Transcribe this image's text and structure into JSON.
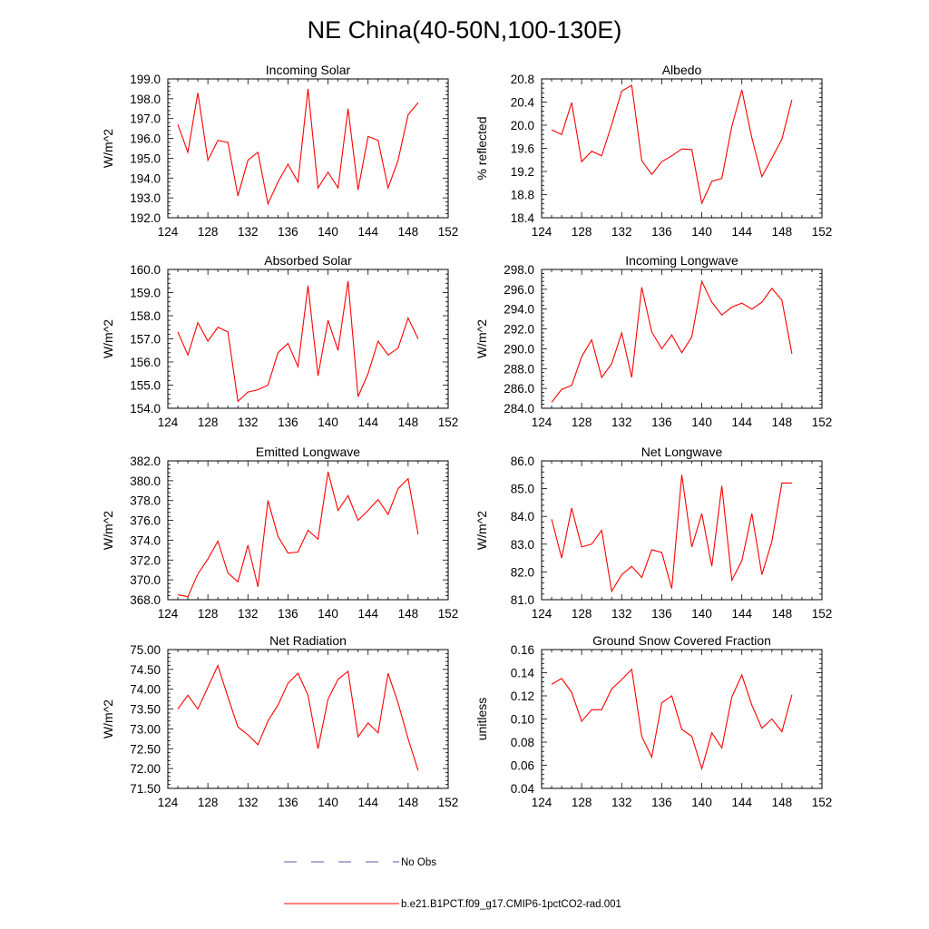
{
  "figure": {
    "title": "NE China(40-50N,100-130E)"
  },
  "colors": {
    "model_line": "#ff0000",
    "obs_line": "#5a5aa8",
    "axis": "#000000",
    "background": "#ffffff"
  },
  "legend": {
    "obs_label": "No Obs",
    "model_label": "b.e21.B1PCT.f09_g17.CMIP6-1pctCO2-rad.001"
  },
  "chart_data": [
    {
      "type": "line",
      "title": "Incoming Solar",
      "xlabel": "",
      "ylabel": "W/m^2",
      "xlim": [
        124,
        152
      ],
      "ylim": [
        192.0,
        199.0
      ],
      "x_ticks": [
        124,
        128,
        132,
        136,
        140,
        144,
        148,
        152
      ],
      "y_ticks": [
        "192.0",
        "193.0",
        "194.0",
        "195.0",
        "196.0",
        "197.0",
        "198.0",
        "199.0"
      ],
      "x": [
        125,
        126,
        127,
        128,
        129,
        130,
        131,
        132,
        133,
        134,
        135,
        136,
        137,
        138,
        139,
        140,
        141,
        142,
        143,
        144,
        145,
        146,
        147,
        148,
        149
      ],
      "values": [
        196.7,
        195.3,
        198.3,
        194.9,
        195.9,
        195.8,
        193.1,
        194.9,
        195.3,
        192.7,
        193.8,
        194.7,
        193.8,
        198.5,
        193.5,
        194.3,
        193.5,
        197.5,
        193.4,
        196.1,
        195.9,
        193.5,
        194.9,
        197.2,
        197.8
      ]
    },
    {
      "type": "line",
      "title": "Albedo",
      "xlabel": "",
      "ylabel": "% reflected",
      "xlim": [
        124,
        152
      ],
      "ylim": [
        18.4,
        20.8
      ],
      "x_ticks": [
        124,
        128,
        132,
        136,
        140,
        144,
        148,
        152
      ],
      "y_ticks": [
        "18.4",
        "18.8",
        "19.2",
        "19.6",
        "20.0",
        "20.4",
        "20.8"
      ],
      "x": [
        125,
        126,
        127,
        128,
        129,
        130,
        131,
        132,
        133,
        134,
        135,
        136,
        137,
        138,
        139,
        140,
        141,
        142,
        143,
        144,
        145,
        146,
        147,
        148,
        149
      ],
      "values": [
        19.92,
        19.84,
        20.39,
        19.37,
        19.55,
        19.47,
        20.01,
        20.59,
        20.69,
        19.39,
        19.15,
        19.37,
        19.47,
        19.59,
        19.58,
        18.65,
        19.03,
        19.08,
        19.98,
        20.61,
        19.78,
        19.11,
        19.43,
        19.76,
        20.44
      ]
    },
    {
      "type": "line",
      "title": "Absorbed Solar",
      "xlabel": "",
      "ylabel": "W/m^2",
      "xlim": [
        124,
        152
      ],
      "ylim": [
        154.0,
        160.0
      ],
      "x_ticks": [
        124,
        128,
        132,
        136,
        140,
        144,
        148,
        152
      ],
      "y_ticks": [
        "154.0",
        "155.0",
        "156.0",
        "157.0",
        "158.0",
        "159.0",
        "160.0"
      ],
      "x": [
        125,
        126,
        127,
        128,
        129,
        130,
        131,
        132,
        133,
        134,
        135,
        136,
        137,
        138,
        139,
        140,
        141,
        142,
        143,
        144,
        145,
        146,
        147,
        148,
        149
      ],
      "values": [
        157.3,
        156.3,
        157.7,
        156.9,
        157.5,
        157.3,
        154.3,
        154.7,
        154.8,
        155.0,
        156.4,
        156.8,
        155.8,
        159.3,
        155.4,
        157.8,
        156.5,
        159.5,
        154.5,
        155.5,
        156.9,
        156.3,
        156.6,
        157.9,
        157.0
      ]
    },
    {
      "type": "line",
      "title": "Incoming Longwave",
      "xlabel": "",
      "ylabel": "W/m^2",
      "xlim": [
        124,
        152
      ],
      "ylim": [
        284.0,
        298.0
      ],
      "x_ticks": [
        124,
        128,
        132,
        136,
        140,
        144,
        148,
        152
      ],
      "y_ticks": [
        "284.0",
        "286.0",
        "288.0",
        "290.0",
        "292.0",
        "294.0",
        "296.0",
        "298.0"
      ],
      "x": [
        125,
        126,
        127,
        128,
        129,
        130,
        131,
        132,
        133,
        134,
        135,
        136,
        137,
        138,
        139,
        140,
        141,
        142,
        143,
        144,
        145,
        146,
        147,
        148,
        149
      ],
      "values": [
        284.6,
        285.9,
        286.3,
        289.2,
        290.9,
        287.1,
        288.5,
        291.6,
        287.1,
        296.2,
        291.7,
        290.0,
        291.4,
        289.6,
        291.2,
        296.8,
        294.7,
        293.4,
        294.2,
        294.6,
        294.0,
        294.7,
        296.1,
        294.9,
        289.5
      ]
    },
    {
      "type": "line",
      "title": "Emitted Longwave",
      "xlabel": "",
      "ylabel": "W/m^2",
      "xlim": [
        124,
        152
      ],
      "ylim": [
        368.0,
        382.0
      ],
      "x_ticks": [
        124,
        128,
        132,
        136,
        140,
        144,
        148,
        152
      ],
      "y_ticks": [
        "368.0",
        "370.0",
        "372.0",
        "374.0",
        "376.0",
        "378.0",
        "380.0",
        "382.0"
      ],
      "x": [
        125,
        126,
        127,
        128,
        129,
        130,
        131,
        132,
        133,
        134,
        135,
        136,
        137,
        138,
        139,
        140,
        141,
        142,
        143,
        144,
        145,
        146,
        147,
        148,
        149
      ],
      "values": [
        368.5,
        368.3,
        370.6,
        372.1,
        373.9,
        370.7,
        369.8,
        373.5,
        369.3,
        378.0,
        374.4,
        372.7,
        372.8,
        375.0,
        374.1,
        380.9,
        377.0,
        378.5,
        376.0,
        377.0,
        378.1,
        376.6,
        379.2,
        380.2,
        374.6
      ]
    },
    {
      "type": "line",
      "title": "Net Longwave",
      "xlabel": "",
      "ylabel": "W/m^2",
      "xlim": [
        124,
        152
      ],
      "ylim": [
        81.0,
        86.0
      ],
      "x_ticks": [
        124,
        128,
        132,
        136,
        140,
        144,
        148,
        152
      ],
      "y_ticks": [
        "81.0",
        "82.0",
        "83.0",
        "84.0",
        "85.0",
        "86.0"
      ],
      "x": [
        125,
        126,
        127,
        128,
        129,
        130,
        131,
        132,
        133,
        134,
        135,
        136,
        137,
        138,
        139,
        140,
        141,
        142,
        143,
        144,
        145,
        146,
        147,
        148,
        149
      ],
      "values": [
        83.9,
        82.5,
        84.3,
        82.9,
        83.0,
        83.5,
        81.3,
        81.9,
        82.2,
        81.8,
        82.8,
        82.7,
        81.4,
        85.5,
        82.9,
        84.1,
        82.2,
        85.1,
        81.7,
        82.4,
        84.1,
        81.9,
        83.1,
        85.2,
        85.2
      ]
    },
    {
      "type": "line",
      "title": "Net Radiation",
      "xlabel": "",
      "ylabel": "W/m^2",
      "xlim": [
        124,
        152
      ],
      "ylim": [
        71.5,
        75.0
      ],
      "x_ticks": [
        124,
        128,
        132,
        136,
        140,
        144,
        148,
        152
      ],
      "y_ticks": [
        "71.50",
        "72.00",
        "72.50",
        "73.00",
        "73.50",
        "74.00",
        "74.50",
        "75.00"
      ],
      "x": [
        125,
        126,
        127,
        128,
        129,
        130,
        131,
        132,
        133,
        134,
        135,
        136,
        137,
        138,
        139,
        140,
        141,
        142,
        143,
        144,
        145,
        146,
        147,
        148,
        149
      ],
      "values": [
        73.5,
        73.85,
        73.5,
        74.05,
        74.6,
        73.8,
        73.05,
        72.85,
        72.6,
        73.2,
        73.6,
        74.15,
        74.4,
        73.85,
        72.5,
        73.75,
        74.25,
        74.45,
        72.8,
        73.15,
        72.9,
        74.4,
        73.65,
        72.75,
        71.95
      ]
    },
    {
      "type": "line",
      "title": "Ground Snow Covered Fraction",
      "xlabel": "",
      "ylabel": "unitless",
      "xlim": [
        124,
        152
      ],
      "ylim": [
        0.04,
        0.16
      ],
      "x_ticks": [
        124,
        128,
        132,
        136,
        140,
        144,
        148,
        152
      ],
      "y_ticks": [
        "0.04",
        "0.06",
        "0.08",
        "0.10",
        "0.12",
        "0.14",
        "0.16"
      ],
      "x": [
        125,
        126,
        127,
        128,
        129,
        130,
        131,
        132,
        133,
        134,
        135,
        136,
        137,
        138,
        139,
        140,
        141,
        142,
        143,
        144,
        145,
        146,
        147,
        148,
        149
      ],
      "values": [
        0.13,
        0.135,
        0.123,
        0.098,
        0.108,
        0.108,
        0.126,
        0.134,
        0.143,
        0.085,
        0.067,
        0.114,
        0.12,
        0.091,
        0.085,
        0.057,
        0.088,
        0.075,
        0.119,
        0.138,
        0.112,
        0.092,
        0.1,
        0.089,
        0.121
      ]
    }
  ]
}
